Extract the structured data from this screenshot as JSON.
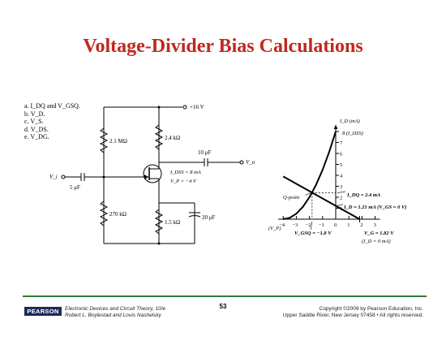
{
  "slide": {
    "title": "Voltage-Divider Bias Calculations",
    "questions": [
      "a.  I_DQ and V_GSQ.",
      "b.  V_D.",
      "c.  V_S.",
      "d.  V_DS.",
      "e.  V_DG."
    ]
  },
  "circuit": {
    "supply": "+16 V",
    "r1": "2.1 MΩ",
    "r2": "270 kΩ",
    "rd": "2.4 kΩ",
    "rs": "1.5 kΩ",
    "c_in": "5 μF",
    "c_out": "10 μF",
    "c_s": "20 μF",
    "vi": "V_i",
    "vo": "V_o",
    "idss": "I_DSS = 8 mA",
    "vp": "V_P = −4 V"
  },
  "graph": {
    "y_axis_label": "I_D (mA)",
    "idss_label": "8 (I_DSS)",
    "y_ticks": [
      "1",
      "2",
      "3",
      "4",
      "5",
      "6",
      "7",
      "8"
    ],
    "x_ticks": [
      "−4",
      "−3",
      "−2",
      "−1",
      "0",
      "1",
      "2",
      "3"
    ],
    "vp_label": "(V_P)",
    "q_point": "Q-point",
    "idq": "I_DQ = 2.4 mA",
    "id_at_vgs0": "I_D = 1.21 mA (V_GS = 0 V)",
    "vgsq": "V_GSQ = −1.8 V",
    "vg": "V_G = 1.82 V",
    "id_zero": "(I_D = 0 mA)"
  },
  "chart_data": {
    "type": "line",
    "xlabel": "",
    "ylabel": "I_D (mA)",
    "xlim": [
      -4,
      3
    ],
    "ylim": [
      0,
      8.6
    ],
    "series": [
      {
        "x": [
          -4,
          -3.5,
          -3,
          -2.5,
          -2,
          -1.5,
          -1,
          -0.5,
          0
        ],
        "y": [
          0,
          0.125,
          0.5,
          1.125,
          2,
          3.125,
          4.5,
          6.125,
          8
        ]
      },
      {
        "x": [
          -4,
          1.82
        ],
        "y": [
          3.9,
          0
        ]
      }
    ],
    "annotations": {
      "q_point": {
        "x": -1.8,
        "y": 2.4
      }
    }
  },
  "footer": {
    "logo": "PEARSON",
    "book_line1": "Electronic Devices and Circuit Theory, 10/e",
    "book_line2": "Robert L. Boylestad and Louis Nashelsky",
    "page": "53",
    "copyright_line1": "Copyright ©2009 by Pearson Education, Inc.",
    "copyright_line2": "Upper Saddle River, New Jersey 07458 • All rights reserved."
  },
  "colors": {
    "title": "#c0281c",
    "footer_rule": "#2f7a3a",
    "logo_bg": "#1b2a55"
  }
}
